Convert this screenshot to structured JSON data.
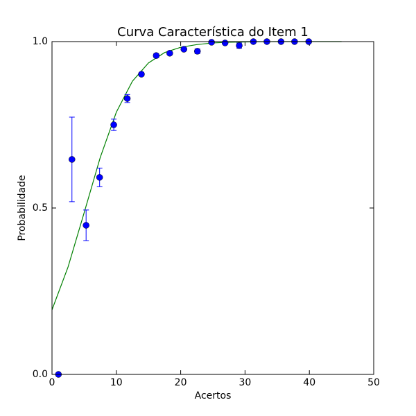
{
  "chart_data": {
    "type": "scatter",
    "title": "Curva Característica do Item 1",
    "x_label": "Acertos",
    "y_label": "Probabilidade",
    "xlim": [
      0,
      50
    ],
    "xticks": [
      0,
      10,
      20,
      30,
      40,
      50
    ],
    "ylim": [
      0,
      1
    ],
    "yticks": [
      {
        "value": 0,
        "label": "0.0"
      },
      {
        "value": 0.5,
        "label": "0.5"
      },
      {
        "value": 1,
        "label": "1.0"
      }
    ],
    "series": [
      {
        "type": "errorbar",
        "color": "#0000ff",
        "x": [
          1.0,
          3.1,
          5.3,
          7.4,
          9.6,
          11.7,
          13.9,
          16.2,
          18.3,
          20.5,
          22.6,
          24.8,
          26.9,
          29.1,
          31.3,
          33.4,
          35.6,
          37.7,
          39.9
        ],
        "values": [
          0.0,
          0.646,
          0.448,
          0.592,
          0.75,
          0.829,
          0.902,
          0.958,
          0.965,
          0.977,
          0.971,
          0.998,
          0.996,
          0.988,
          1.0,
          1.0,
          1.0,
          1.0,
          1.0
        ],
        "errors": [
          0,
          0.127,
          0.046,
          0.028,
          0.017,
          0.012,
          0.005,
          0.006,
          0.005,
          0.004,
          0.007,
          0.003,
          0.003,
          0.008,
          0,
          0,
          0,
          0,
          0
        ]
      },
      {
        "type": "line",
        "color": "#008000",
        "x": [
          0,
          2.5,
          5,
          7.5,
          10,
          12.5,
          15,
          17.5,
          20,
          22.5,
          25,
          27.5,
          30,
          35,
          40,
          45
        ],
        "values": [
          0.194,
          0.323,
          0.486,
          0.652,
          0.788,
          0.881,
          0.936,
          0.967,
          0.983,
          0.991,
          0.996,
          0.998,
          0.999,
          1.0,
          1.0,
          1.0
        ]
      }
    ]
  }
}
